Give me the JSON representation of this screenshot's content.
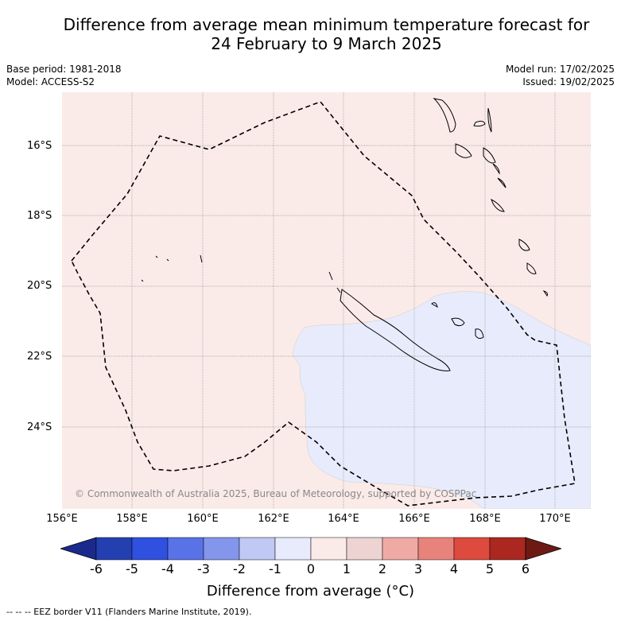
{
  "title": {
    "line1": "Difference from average mean minimum temperature forecast for",
    "line2": "24 February to 9 March 2025"
  },
  "meta": {
    "base_period": "Base period: 1981-2018",
    "model": "Model: ACCESS-S2",
    "model_run": "Model run: 17/02/2025",
    "issued": "Issued: 19/02/2025"
  },
  "map": {
    "copyright": "© Commonwealth of Australia 2025, Bureau of Meteorology, supported by COSPPac",
    "lat_labels": [
      "16°S",
      "18°S",
      "20°S",
      "22°S",
      "24°S"
    ],
    "lon_labels": [
      "156°E",
      "158°E",
      "160°E",
      "162°E",
      "164°E",
      "166°E",
      "168°E",
      "170°E"
    ],
    "colors": {
      "background_anomaly": "#fbebe8",
      "cool_anomaly": "#e8ebfb",
      "land_outline": "#000000",
      "grid": "#999999"
    }
  },
  "colorbar": {
    "ticks": [
      "-6",
      "-5",
      "-4",
      "-3",
      "-2",
      "-1",
      "0",
      "1",
      "2",
      "3",
      "4",
      "5",
      "6"
    ],
    "colors": [
      "#1a2a8c",
      "#2440b0",
      "#3050e0",
      "#5a72e8",
      "#8495ec",
      "#c0c8f4",
      "#e8ebfb",
      "#fbebe8",
      "#edd4d2",
      "#f0aaa5",
      "#e8837c",
      "#dd4a3e",
      "#aa2820",
      "#6e1a14"
    ],
    "title": "Difference from average (°C)"
  },
  "footer": "--  --  -- EEZ border V11 (Flanders Marine Institute, 2019)."
}
